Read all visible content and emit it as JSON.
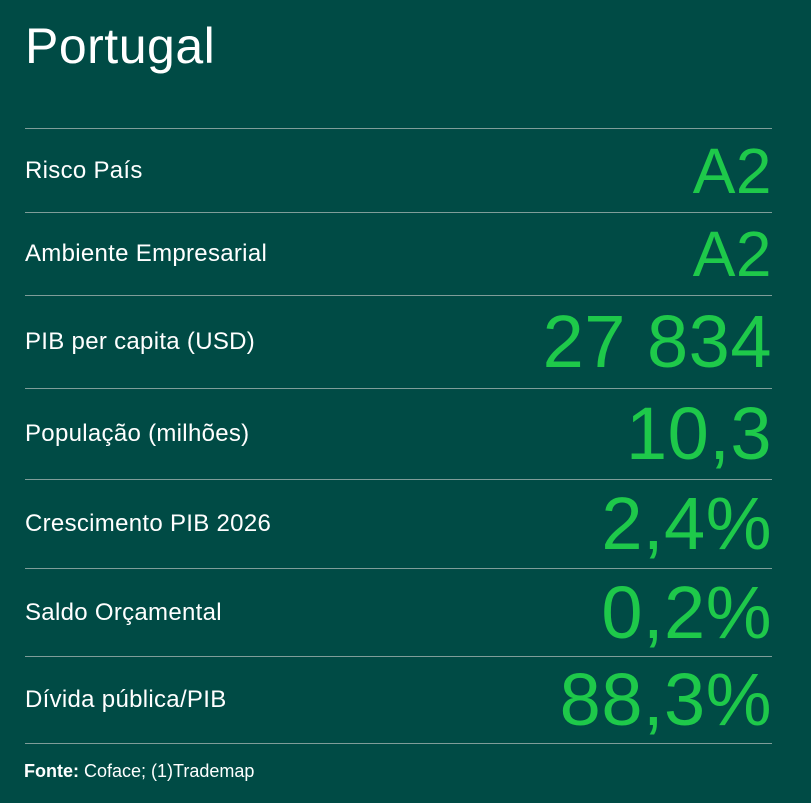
{
  "title": "Portugal",
  "rows": [
    {
      "label": "Risco País",
      "value": "A2"
    },
    {
      "label": "Ambiente Empresarial",
      "value": "A2"
    },
    {
      "label": "PIB per capita (USD)",
      "value": "27 834"
    },
    {
      "label": "População (milhões)",
      "value": "10,3"
    },
    {
      "label": "Crescimento PIB 2026",
      "value": "2,4%"
    },
    {
      "label": "Saldo Orçamental",
      "value": "0,2%"
    },
    {
      "label": "Dívida pública/PIB",
      "value": "88,3%"
    }
  ],
  "source": {
    "prefix": "Fonte:",
    "text": " Coface; (1)Trademap"
  },
  "colors": {
    "background": "#004b45",
    "value": "#1ec94a",
    "label": "#ffffff",
    "rule": "#7f9d99"
  }
}
